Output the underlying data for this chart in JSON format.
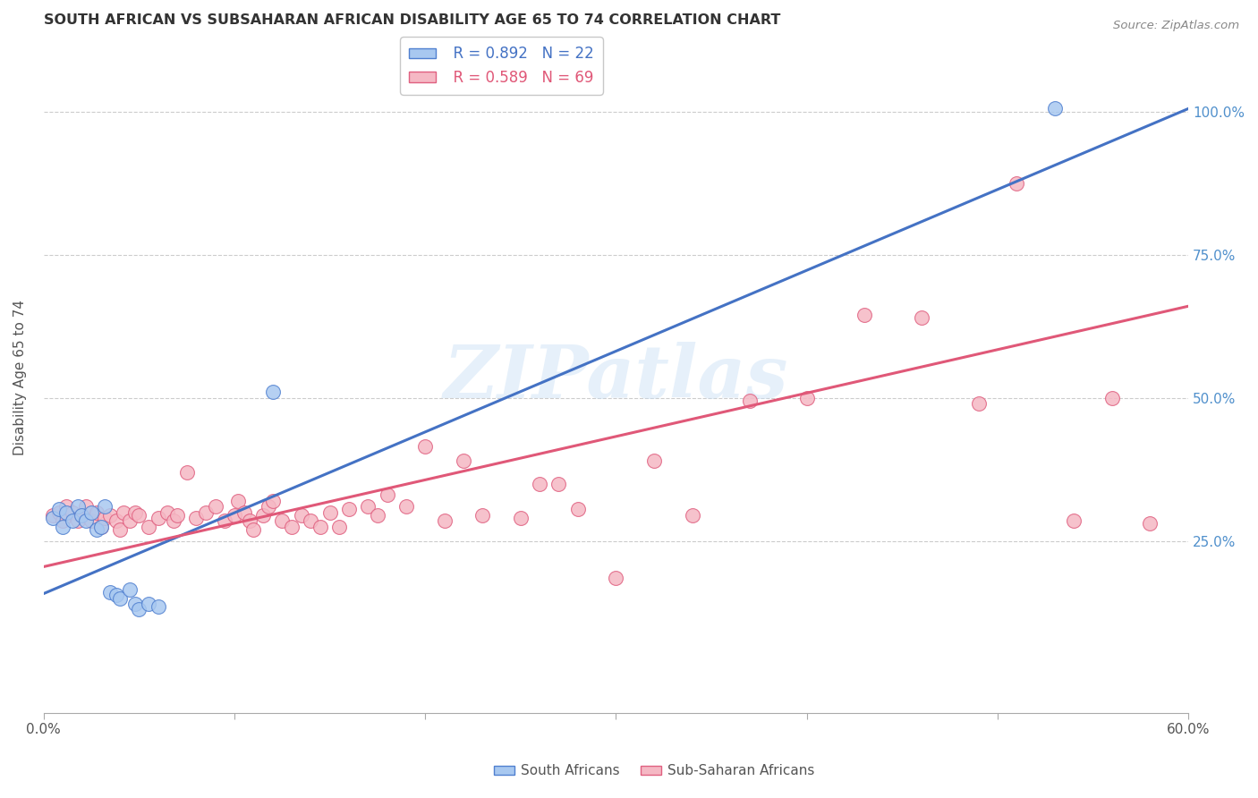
{
  "title": "SOUTH AFRICAN VS SUBSAHARAN AFRICAN DISABILITY AGE 65 TO 74 CORRELATION CHART",
  "source": "Source: ZipAtlas.com",
  "ylabel": "Disability Age 65 to 74",
  "xlim": [
    0.0,
    0.6
  ],
  "ylim": [
    -0.05,
    1.12
  ],
  "xtick_vals": [
    0.0,
    0.1,
    0.2,
    0.3,
    0.4,
    0.5,
    0.6
  ],
  "xtick_labels_show": [
    "0.0%",
    "",
    "",
    "",
    "",
    "",
    "60.0%"
  ],
  "ytick_vals": [
    0.25,
    0.5,
    0.75,
    1.0
  ],
  "ytick_labels": [
    "25.0%",
    "50.0%",
    "75.0%",
    "100.0%"
  ],
  "sa_R": 0.892,
  "sa_N": 22,
  "ssa_R": 0.589,
  "ssa_N": 69,
  "sa_color": "#A8C8F0",
  "ssa_color": "#F5B8C4",
  "sa_edge_color": "#5080D0",
  "ssa_edge_color": "#E06080",
  "sa_line_color": "#4472C4",
  "ssa_line_color": "#E05878",
  "right_tick_color": "#5090CC",
  "background_color": "#FFFFFF",
  "watermark_text": "ZIPatlas",
  "sa_x": [
    0.005,
    0.008,
    0.01,
    0.012,
    0.015,
    0.018,
    0.02,
    0.022,
    0.025,
    0.028,
    0.03,
    0.032,
    0.035,
    0.038,
    0.04,
    0.045,
    0.048,
    0.05,
    0.055,
    0.06,
    0.12,
    0.53
  ],
  "sa_y": [
    0.29,
    0.305,
    0.275,
    0.3,
    0.285,
    0.31,
    0.295,
    0.285,
    0.3,
    0.27,
    0.275,
    0.31,
    0.16,
    0.155,
    0.15,
    0.165,
    0.14,
    0.13,
    0.14,
    0.135,
    0.51,
    1.005
  ],
  "ssa_x": [
    0.005,
    0.008,
    0.01,
    0.012,
    0.015,
    0.018,
    0.02,
    0.022,
    0.025,
    0.028,
    0.03,
    0.032,
    0.035,
    0.038,
    0.04,
    0.042,
    0.045,
    0.048,
    0.05,
    0.055,
    0.06,
    0.065,
    0.068,
    0.07,
    0.075,
    0.08,
    0.085,
    0.09,
    0.095,
    0.1,
    0.102,
    0.105,
    0.108,
    0.11,
    0.115,
    0.118,
    0.12,
    0.125,
    0.13,
    0.135,
    0.14,
    0.145,
    0.15,
    0.155,
    0.16,
    0.17,
    0.175,
    0.18,
    0.19,
    0.2,
    0.21,
    0.22,
    0.23,
    0.25,
    0.26,
    0.27,
    0.28,
    0.3,
    0.32,
    0.34,
    0.37,
    0.4,
    0.43,
    0.46,
    0.49,
    0.51,
    0.54,
    0.56,
    0.58
  ],
  "ssa_y": [
    0.295,
    0.3,
    0.285,
    0.31,
    0.3,
    0.285,
    0.295,
    0.31,
    0.285,
    0.3,
    0.275,
    0.29,
    0.295,
    0.285,
    0.27,
    0.3,
    0.285,
    0.3,
    0.295,
    0.275,
    0.29,
    0.3,
    0.285,
    0.295,
    0.37,
    0.29,
    0.3,
    0.31,
    0.285,
    0.295,
    0.32,
    0.3,
    0.285,
    0.27,
    0.295,
    0.31,
    0.32,
    0.285,
    0.275,
    0.295,
    0.285,
    0.275,
    0.3,
    0.275,
    0.305,
    0.31,
    0.295,
    0.33,
    0.31,
    0.415,
    0.285,
    0.39,
    0.295,
    0.29,
    0.35,
    0.35,
    0.305,
    0.185,
    0.39,
    0.295,
    0.495,
    0.5,
    0.645,
    0.64,
    0.49,
    0.875,
    0.285,
    0.5,
    0.28
  ],
  "sa_line_x0": 0.0,
  "sa_line_y0": 0.158,
  "sa_line_x1": 0.6,
  "sa_line_y1": 1.005,
  "ssa_line_x0": 0.0,
  "ssa_line_y0": 0.205,
  "ssa_line_x1": 0.6,
  "ssa_line_y1": 0.66
}
